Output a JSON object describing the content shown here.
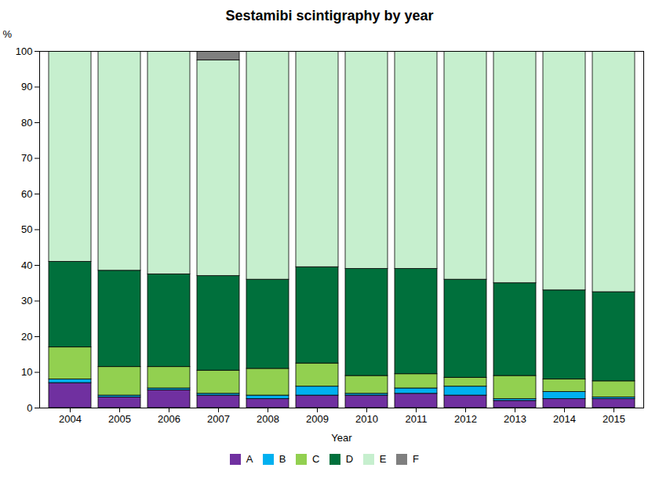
{
  "chart_data": {
    "type": "bar",
    "stacked": true,
    "title": "Sestamibi scintigraphy by year",
    "xlabel": "Year",
    "ylabel": "%",
    "categories": [
      "2004",
      "2005",
      "2006",
      "2007",
      "2008",
      "2009",
      "2010",
      "2011",
      "2012",
      "2013",
      "2014",
      "2015"
    ],
    "series": [
      {
        "name": "A",
        "color": "#7030A0",
        "values": [
          7.0,
          3.0,
          5.0,
          3.5,
          2.5,
          3.5,
          3.5,
          4.0,
          3.5,
          2.0,
          2.5,
          2.5
        ]
      },
      {
        "name": "B",
        "color": "#00B0F0",
        "values": [
          1.0,
          0.5,
          0.5,
          0.5,
          1.0,
          2.5,
          0.5,
          1.5,
          2.5,
          0.5,
          2.0,
          0.5
        ]
      },
      {
        "name": "C",
        "color": "#92D050",
        "values": [
          9.0,
          8.0,
          6.0,
          6.5,
          7.5,
          6.5,
          5.0,
          4.0,
          2.5,
          6.5,
          3.5,
          4.5
        ]
      },
      {
        "name": "D",
        "color": "#00703C",
        "values": [
          24.0,
          27.0,
          26.0,
          26.5,
          25.0,
          27.0,
          30.0,
          29.5,
          27.5,
          26.0,
          25.0,
          25.0
        ]
      },
      {
        "name": "E",
        "color": "#C6EFCE",
        "values": [
          59.0,
          61.5,
          62.5,
          60.5,
          64.0,
          60.5,
          61.0,
          61.0,
          64.0,
          65.0,
          67.0,
          67.5
        ]
      },
      {
        "name": "F",
        "color": "#7F7F7F",
        "values": [
          0.0,
          0.0,
          0.0,
          2.5,
          0.0,
          0.0,
          0.0,
          0.0,
          0.0,
          0.0,
          0.0,
          0.0
        ]
      }
    ],
    "ylim": [
      0,
      100
    ],
    "yticks": [
      0,
      10,
      20,
      30,
      40,
      50,
      60,
      70,
      80,
      90,
      100
    ],
    "grid": false,
    "legend": "bottom"
  }
}
